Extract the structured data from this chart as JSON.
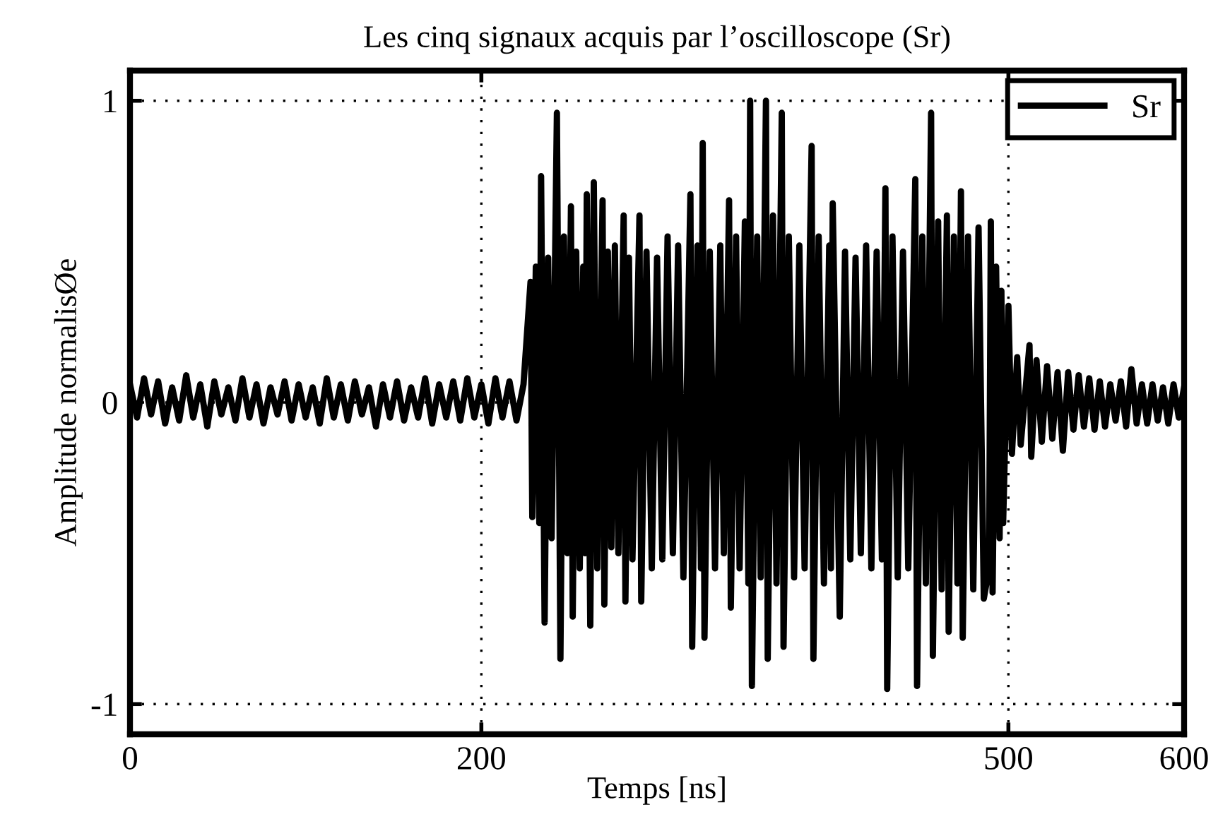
{
  "chart_data": {
    "type": "line",
    "title": "Les cinq signaux acquis par l’oscilloscope (Sr)",
    "xlabel": "Temps [ns]",
    "ylabel": "Amplitude normalisØe",
    "xlim": [
      0,
      600
    ],
    "xticks": [
      0,
      200,
      500,
      600
    ],
    "ylim": [
      -1.1,
      1.1
    ],
    "yticks": [
      -1,
      0,
      1
    ],
    "grid": true,
    "legend": "top right",
    "line_style": "solid",
    "marker": "none",
    "series": [
      {
        "name": "Sr",
        "color": "#000000",
        "x": [
          0,
          4,
          8,
          12,
          16,
          20,
          24,
          28,
          32,
          36,
          40,
          44,
          48,
          52,
          56,
          60,
          64,
          68,
          72,
          76,
          80,
          84,
          88,
          92,
          96,
          100,
          104,
          108,
          112,
          116,
          120,
          124,
          128,
          132,
          136,
          140,
          144,
          148,
          152,
          156,
          160,
          164,
          168,
          172,
          176,
          180,
          184,
          188,
          192,
          196,
          200,
          204,
          208,
          212,
          216,
          220,
          224,
          228,
          229,
          231,
          233,
          234,
          236,
          238,
          240,
          243,
          245,
          247,
          249,
          251,
          252,
          254,
          256,
          258,
          259,
          260,
          262,
          264,
          266,
          269,
          270,
          272,
          274,
          276,
          278,
          281,
          282,
          284,
          286,
          290,
          291,
          294,
          297,
          300,
          303,
          306,
          309,
          312,
          315,
          319,
          320,
          323,
          325,
          326,
          327,
          330,
          333,
          336,
          338,
          341,
          342,
          345,
          347,
          350,
          352,
          353,
          354,
          357,
          359,
          362,
          363,
          366,
          368,
          371,
          372,
          375,
          378,
          381,
          384,
          388,
          389,
          392,
          395,
          398,
          399,
          400,
          404,
          407,
          410,
          413,
          416,
          419,
          422,
          425,
          428,
          430,
          431,
          434,
          437,
          440,
          443,
          447,
          448,
          451,
          453,
          456,
          457,
          460,
          462,
          465,
          466,
          469,
          471,
          473,
          474,
          477,
          480,
          483,
          486,
          489,
          490,
          491,
          493,
          495,
          496,
          497,
          500,
          502,
          505,
          507,
          512,
          513,
          516,
          519,
          522,
          525,
          528,
          531,
          534,
          537,
          540,
          543,
          546,
          549,
          552,
          555,
          558,
          561,
          564,
          567,
          570,
          573,
          576,
          579,
          582,
          585,
          588,
          591,
          594,
          597,
          600
        ],
        "values": [
          0.06,
          -0.05,
          0.08,
          -0.04,
          0.07,
          -0.07,
          0.05,
          -0.06,
          0.09,
          -0.05,
          0.06,
          -0.08,
          0.07,
          -0.04,
          0.05,
          -0.06,
          0.08,
          -0.05,
          0.06,
          -0.07,
          0.05,
          -0.04,
          0.07,
          -0.06,
          0.06,
          -0.05,
          0.05,
          -0.07,
          0.08,
          -0.05,
          0.06,
          -0.06,
          0.07,
          -0.04,
          0.05,
          -0.08,
          0.06,
          -0.05,
          0.07,
          -0.06,
          0.05,
          -0.05,
          0.08,
          -0.07,
          0.06,
          -0.05,
          0.07,
          -0.06,
          0.08,
          -0.05,
          0.06,
          -0.07,
          0.08,
          -0.05,
          0.07,
          -0.06,
          0.06,
          0.4,
          -0.38,
          0.45,
          -0.4,
          0.75,
          -0.73,
          0.48,
          -0.45,
          0.96,
          -0.85,
          0.55,
          -0.5,
          0.65,
          -0.71,
          0.5,
          -0.55,
          0.45,
          -0.5,
          0.69,
          -0.74,
          0.73,
          -0.55,
          0.67,
          -0.67,
          0.5,
          -0.48,
          0.52,
          -0.5,
          0.62,
          -0.66,
          0.48,
          -0.52,
          0.62,
          -0.66,
          0.5,
          -0.55,
          0.48,
          -0.52,
          0.55,
          -0.5,
          0.52,
          -0.58,
          0.69,
          -0.81,
          0.52,
          -0.55,
          0.86,
          -0.78,
          0.5,
          -0.55,
          0.52,
          -0.5,
          0.67,
          -0.68,
          0.55,
          -0.55,
          0.6,
          -0.6,
          1.0,
          -0.94,
          0.55,
          -0.58,
          1.0,
          -0.85,
          0.62,
          -0.6,
          0.96,
          -0.81,
          0.55,
          -0.58,
          0.52,
          -0.55,
          0.85,
          -0.85,
          0.55,
          -0.6,
          0.52,
          -0.55,
          0.66,
          -0.71,
          0.5,
          -0.52,
          0.48,
          -0.5,
          0.52,
          -0.55,
          0.5,
          -0.52,
          0.71,
          -0.95,
          0.55,
          -0.58,
          0.5,
          -0.55,
          0.74,
          -0.94,
          0.55,
          -0.6,
          0.96,
          -0.84,
          0.6,
          -0.62,
          0.62,
          -0.76,
          0.55,
          -0.6,
          0.7,
          -0.78,
          0.55,
          -0.62,
          0.58,
          -0.65,
          -0.55,
          0.6,
          -0.63,
          0.45,
          -0.45,
          0.37,
          -0.4,
          0.32,
          -0.17,
          0.15,
          -0.14,
          0.19,
          -0.18,
          0.14,
          -0.13,
          0.12,
          -0.12,
          0.1,
          -0.16,
          0.1,
          -0.09,
          0.09,
          -0.08,
          0.08,
          -0.09,
          0.07,
          -0.08,
          0.06,
          -0.06,
          0.07,
          -0.08,
          0.11,
          -0.07,
          0.06,
          -0.07,
          0.06,
          -0.06,
          0.05,
          -0.07,
          0.06,
          -0.05,
          0.05
        ]
      }
    ]
  }
}
